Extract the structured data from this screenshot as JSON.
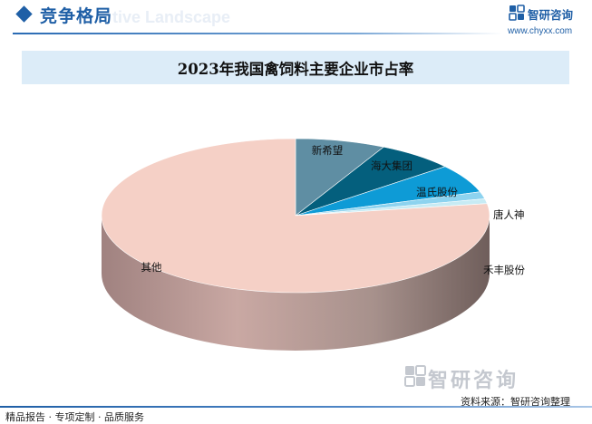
{
  "header": {
    "section_title": "竞争格局",
    "section_subtitle": "tive Landscape",
    "brand_name": "智研咨询",
    "brand_url": "www.chyxx.com"
  },
  "chart_data": {
    "type": "pie",
    "title": "2023年我国禽饲料主要企业市占率",
    "slices": [
      {
        "label": "新希望",
        "value": 7.5,
        "color": "#5f8ea3"
      },
      {
        "label": "海大集团",
        "value": 6.5,
        "color": "#045f7d"
      },
      {
        "label": "温氏股份",
        "value": 6.0,
        "color": "#0e9bd6"
      },
      {
        "label": "唐人神",
        "value": 1.5,
        "color": "#8dd3ef"
      },
      {
        "label": "禾丰股份",
        "value": 1.0,
        "color": "#c7ebf4"
      },
      {
        "label": "其他",
        "value": 77.5,
        "color": "#f5d0c6"
      }
    ],
    "side_color": "#ad8f8b",
    "legend": "none"
  },
  "footer": {
    "left_text": "精品报告 · 专项定制 · 品质服务",
    "source_text": "资料来源：智研咨询整理",
    "watermark_text": "智研咨询"
  }
}
